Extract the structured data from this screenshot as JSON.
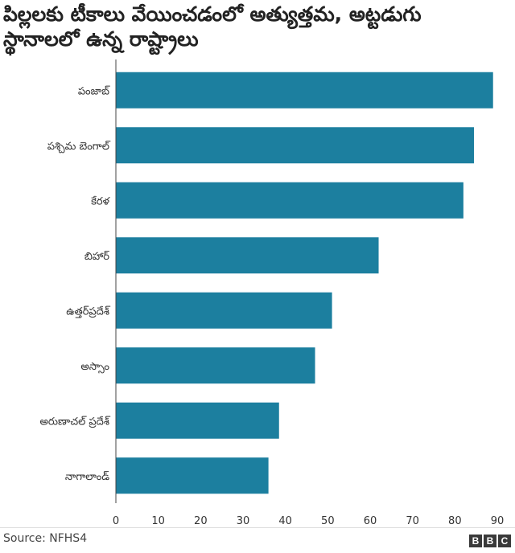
{
  "chart_data": {
    "type": "bar",
    "orientation": "horizontal",
    "title_lines": [
      "పిల్లలకు టీకాలు వేయించడంలో అత్యుత్తమ, అట్టడుగు",
      "స్థానాలలో ఉన్న రాష్ట్రాలు"
    ],
    "categories": [
      "పంజాబ్",
      "పశ్చిమ బెంగాల్",
      "కేరళ",
      "బిహార్",
      "ఉత్తర్‌ప్రదేశ్",
      "అస్సాం",
      "అరుణాచల్ ప్రదేశ్",
      "నాగాలాండ్"
    ],
    "values": [
      89,
      84.5,
      82,
      62,
      51,
      47,
      38.5,
      36
    ],
    "xlim": [
      0,
      90
    ],
    "xticks": [
      "0",
      "10",
      "20",
      "30",
      "40",
      "50",
      "60",
      "70",
      "80",
      "90"
    ],
    "grid": false,
    "bar_color": "#1c7f9f"
  },
  "footer": {
    "source": "Source: NFHS4",
    "logo": [
      "B",
      "B",
      "C"
    ]
  }
}
